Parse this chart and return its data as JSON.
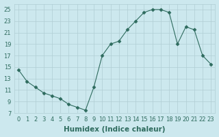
{
  "x": [
    0,
    1,
    2,
    3,
    4,
    5,
    6,
    7,
    8,
    9,
    10,
    11,
    12,
    13,
    14,
    15,
    16,
    17,
    18,
    19,
    20,
    21,
    22,
    23
  ],
  "y": [
    14.5,
    12.5,
    11.5,
    10.5,
    10.0,
    9.5,
    8.5,
    8.0,
    7.5,
    11.5,
    17.0,
    19.0,
    19.5,
    21.5,
    23.0,
    24.5,
    25.0,
    25.0,
    24.5,
    19.0,
    22.0,
    21.5,
    17.0,
    15.5
  ],
  "line_color": "#2e6b5e",
  "marker": "D",
  "marker_size": 2.5,
  "bg_color": "#cce8ee",
  "grid_color": "#b0cdd4",
  "xlabel": "Humidex (Indice chaleur)",
  "xlim": [
    -0.5,
    23.5
  ],
  "ylim": [
    7,
    26
  ],
  "yticks": [
    7,
    9,
    11,
    13,
    15,
    17,
    19,
    21,
    23,
    25
  ],
  "xticks": [
    0,
    1,
    2,
    3,
    4,
    5,
    6,
    7,
    8,
    9,
    10,
    11,
    12,
    13,
    14,
    15,
    16,
    17,
    18,
    19,
    20,
    21,
    22,
    23
  ],
  "tick_fontsize": 6,
  "xlabel_fontsize": 7.5
}
